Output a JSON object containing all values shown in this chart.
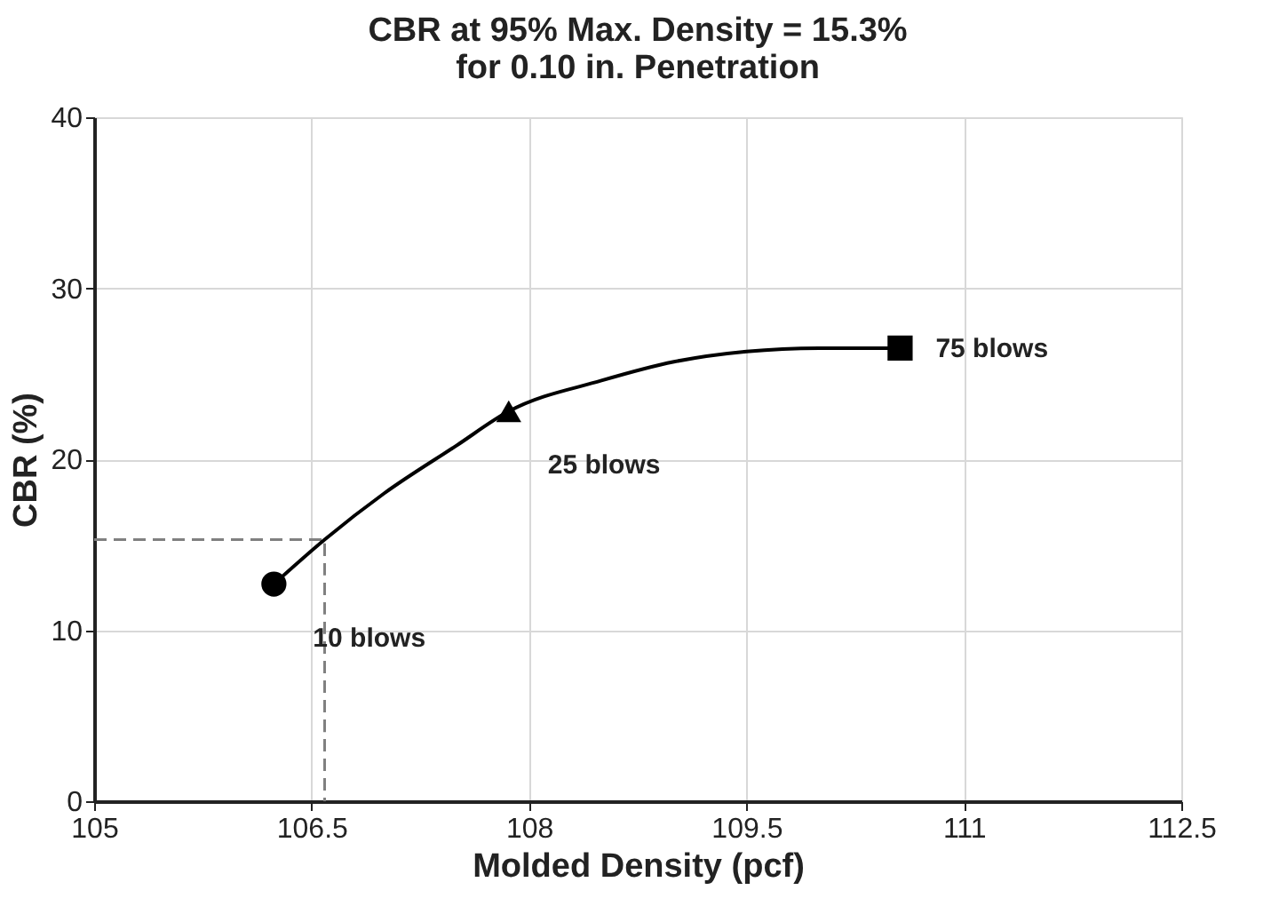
{
  "chart_data": {
    "type": "line",
    "title": [
      "CBR at 95% Max. Density = 15.3%",
      "for 0.10 in. Penetration"
    ],
    "xlabel": "Molded Density (pcf)",
    "ylabel": "CBR (%)",
    "xlim": [
      105,
      112.5
    ],
    "xticks": [
      105,
      106.5,
      108,
      109.5,
      111,
      112.5
    ],
    "ylim": [
      0,
      40
    ],
    "yticks": [
      0,
      10,
      20,
      30,
      40
    ],
    "grid": true,
    "series": [
      {
        "type": "line",
        "color": "#808080",
        "line_style": "dashed",
        "marker": "none",
        "x": [
          105,
          106.59,
          106.59
        ],
        "values": [
          15.3,
          15.3,
          0
        ]
      },
      {
        "color": "#000000",
        "line_style": "solid",
        "marker": "none",
        "x": [
          106.24,
          106.59,
          107,
          107.5,
          107.86,
          108.5,
          109,
          109.5,
          110,
          110.56
        ],
        "values": [
          12.7,
          15.3,
          18.0,
          20.8,
          22.8,
          24.6,
          25.7,
          26.3,
          26.5,
          26.5
        ]
      },
      {
        "type": "scatter",
        "color": "#000000",
        "marker": "circle",
        "x": [
          106.24
        ],
        "values": [
          12.7
        ]
      },
      {
        "type": "scatter",
        "color": "#000000",
        "marker": "triangle",
        "x": [
          107.86
        ],
        "values": [
          22.8
        ]
      },
      {
        "type": "scatter",
        "color": "#000000",
        "marker": "square",
        "x": [
          110.56
        ],
        "values": [
          26.5
        ]
      }
    ],
    "annotations": [
      {
        "text": "10 blows",
        "x": 106.24,
        "y": 12.7
      },
      {
        "text": "25 blows",
        "x": 107.86,
        "y": 22.8
      },
      {
        "text": "75 blows",
        "x": 110.56,
        "y": 26.5
      }
    ]
  }
}
